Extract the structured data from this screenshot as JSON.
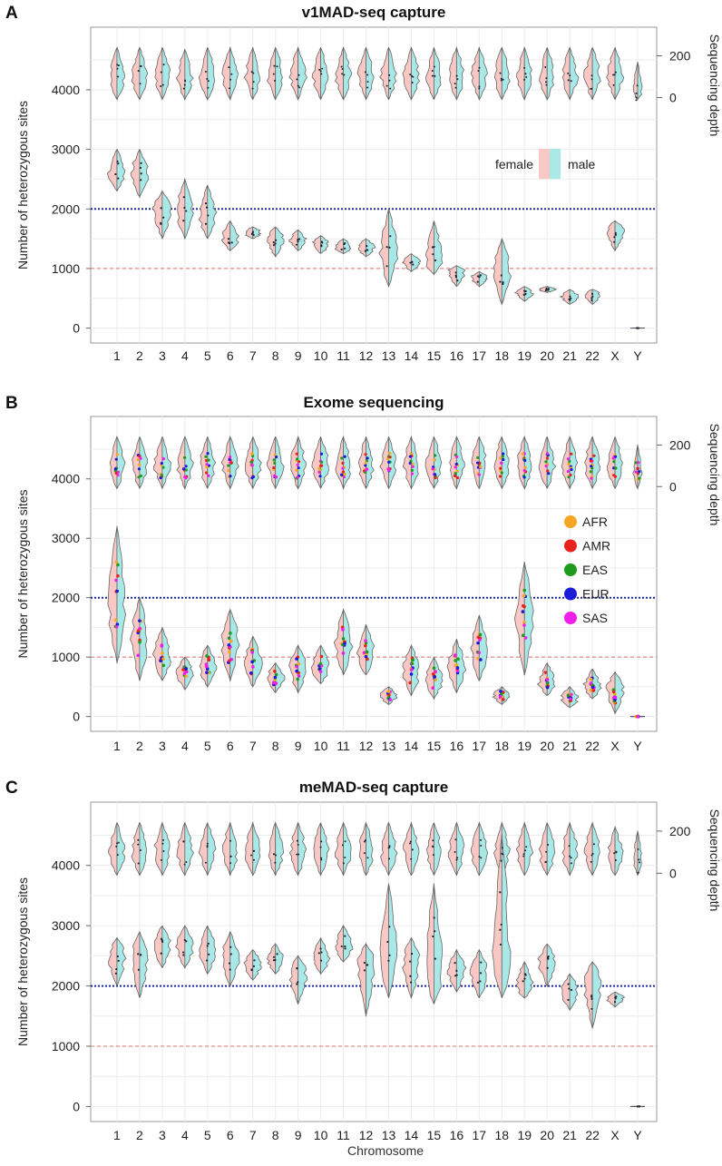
{
  "figure": {
    "xlabel": "Chromosome",
    "colors": {
      "female": "#f9c8c4",
      "male": "#a8e8e6",
      "outline": "#666666",
      "ref2000": "#1f2b8f",
      "ref1000": "#e06f6f",
      "grid": "#ececec"
    }
  },
  "chart_data": [
    {
      "panel": "A",
      "type": "violin",
      "title": "v1MAD-seq capture",
      "ylabel": "Number of heterozygous sites",
      "y2label": "Sequencing depth",
      "categories": [
        "1",
        "2",
        "3",
        "4",
        "5",
        "6",
        "7",
        "8",
        "9",
        "10",
        "11",
        "12",
        "13",
        "14",
        "15",
        "16",
        "17",
        "18",
        "19",
        "20",
        "21",
        "22",
        "X",
        "Y"
      ],
      "ylim": [
        -250,
        5050
      ],
      "yticks": [
        0,
        1000,
        2000,
        3000,
        4000
      ],
      "y2ticks": [
        0,
        200
      ],
      "reference_lines": [
        2000,
        1000
      ],
      "legend": {
        "female": "female",
        "male": "male"
      },
      "heterozygous_sites_median": [
        2600,
        2600,
        2000,
        2000,
        1900,
        1500,
        1600,
        1500,
        1470,
        1400,
        1350,
        1350,
        1250,
        1100,
        1100,
        950,
        850,
        950,
        600,
        650,
        530,
        560,
        1650,
        0
      ],
      "heterozygous_sites_range": [
        [
          2300,
          3000
        ],
        [
          2200,
          3000
        ],
        [
          1500,
          2300
        ],
        [
          1500,
          2500
        ],
        [
          1500,
          2400
        ],
        [
          1300,
          1800
        ],
        [
          1500,
          1700
        ],
        [
          1200,
          1700
        ],
        [
          1300,
          1650
        ],
        [
          1250,
          1550
        ],
        [
          1250,
          1500
        ],
        [
          1200,
          1500
        ],
        [
          700,
          2000
        ],
        [
          950,
          1250
        ],
        [
          900,
          1800
        ],
        [
          700,
          1050
        ],
        [
          700,
          950
        ],
        [
          400,
          1500
        ],
        [
          450,
          700
        ],
        [
          600,
          700
        ],
        [
          400,
          650
        ],
        [
          400,
          650
        ],
        [
          1300,
          1800
        ],
        [
          0,
          0
        ]
      ],
      "sequencing_depth_median": [
        100,
        100,
        100,
        90,
        100,
        100,
        100,
        100,
        100,
        100,
        100,
        100,
        100,
        100,
        100,
        100,
        100,
        100,
        100,
        100,
        100,
        100,
        100,
        30
      ]
    },
    {
      "panel": "B",
      "type": "violin",
      "title": "Exome sequencing",
      "ylabel": "Number of heterozygous sites",
      "y2label": "Sequencing depth",
      "categories": [
        "1",
        "2",
        "3",
        "4",
        "5",
        "6",
        "7",
        "8",
        "9",
        "10",
        "11",
        "12",
        "13",
        "14",
        "15",
        "16",
        "17",
        "18",
        "19",
        "20",
        "21",
        "22",
        "X",
        "Y"
      ],
      "ylim": [
        -250,
        5050
      ],
      "yticks": [
        0,
        1000,
        2000,
        3000,
        4000
      ],
      "y2ticks": [
        0,
        200
      ],
      "reference_lines": [
        2000,
        1000
      ],
      "legend": {
        "populations": [
          "AFR",
          "AMR",
          "EAS",
          "EUR",
          "SAS"
        ]
      },
      "population_colors": {
        "AFR": "#f5a623",
        "AMR": "#e8231d",
        "EAS": "#1e9a1e",
        "EUR": "#1c1cd6",
        "SAS": "#ee1fe8"
      },
      "heterozygous_sites_median": [
        1900,
        1300,
        1000,
        750,
        850,
        1250,
        900,
        650,
        800,
        800,
        1200,
        1000,
        350,
        750,
        600,
        800,
        1100,
        350,
        1700,
        550,
        300,
        500,
        450,
        0
      ],
      "heterozygous_sites_range": [
        [
          900,
          3200
        ],
        [
          600,
          2000
        ],
        [
          600,
          1500
        ],
        [
          450,
          1000
        ],
        [
          500,
          1200
        ],
        [
          600,
          1800
        ],
        [
          500,
          1350
        ],
        [
          400,
          900
        ],
        [
          400,
          1200
        ],
        [
          550,
          1200
        ],
        [
          700,
          1800
        ],
        [
          700,
          1550
        ],
        [
          200,
          500
        ],
        [
          350,
          1200
        ],
        [
          300,
          1000
        ],
        [
          400,
          1300
        ],
        [
          600,
          1700
        ],
        [
          200,
          500
        ],
        [
          700,
          2600
        ],
        [
          350,
          900
        ],
        [
          150,
          500
        ],
        [
          300,
          800
        ],
        [
          50,
          750
        ],
        [
          0,
          0
        ]
      ],
      "sequencing_depth_median": [
        100,
        100,
        100,
        100,
        100,
        100,
        100,
        100,
        100,
        100,
        100,
        100,
        100,
        100,
        100,
        100,
        100,
        100,
        100,
        100,
        100,
        100,
        100,
        60
      ]
    },
    {
      "panel": "C",
      "type": "violin",
      "title": "meMAD-seq capture",
      "ylabel": "Number of heterozygous sites",
      "y2label": "Sequencing depth",
      "categories": [
        "1",
        "2",
        "3",
        "4",
        "5",
        "6",
        "7",
        "8",
        "9",
        "10",
        "11",
        "12",
        "13",
        "14",
        "15",
        "16",
        "17",
        "18",
        "19",
        "20",
        "21",
        "22",
        "X",
        "Y"
      ],
      "ylim": [
        -250,
        5050
      ],
      "yticks": [
        0,
        1000,
        2000,
        3000,
        4000
      ],
      "y2ticks": [
        0,
        200
      ],
      "reference_lines": [
        2000,
        1000
      ],
      "heterozygous_sites_median": [
        2500,
        2450,
        2700,
        2650,
        2600,
        2450,
        2350,
        2450,
        2200,
        2450,
        2650,
        2400,
        2500,
        2400,
        2200,
        2250,
        2200,
        2300,
        2000,
        2400,
        1900,
        2100,
        1800,
        0
      ],
      "heterozygous_sites_range": [
        [
          2000,
          2800
        ],
        [
          1800,
          2900
        ],
        [
          2300,
          3000
        ],
        [
          2300,
          3000
        ],
        [
          2200,
          3000
        ],
        [
          2000,
          2900
        ],
        [
          2100,
          2600
        ],
        [
          2200,
          2700
        ],
        [
          1700,
          2500
        ],
        [
          2200,
          2800
        ],
        [
          2400,
          3000
        ],
        [
          1500,
          2700
        ],
        [
          1800,
          3700
        ],
        [
          1800,
          2800
        ],
        [
          1700,
          3700
        ],
        [
          1900,
          2600
        ],
        [
          1800,
          2600
        ],
        [
          1800,
          4500
        ],
        [
          1800,
          2400
        ],
        [
          2000,
          2700
        ],
        [
          1600,
          2200
        ],
        [
          1300,
          2400
        ],
        [
          1650,
          1900
        ],
        [
          0,
          0
        ]
      ],
      "sequencing_depth_median": [
        100,
        100,
        100,
        100,
        100,
        100,
        100,
        100,
        100,
        100,
        100,
        100,
        100,
        100,
        100,
        100,
        100,
        100,
        100,
        100,
        100,
        100,
        80,
        60
      ]
    }
  ]
}
